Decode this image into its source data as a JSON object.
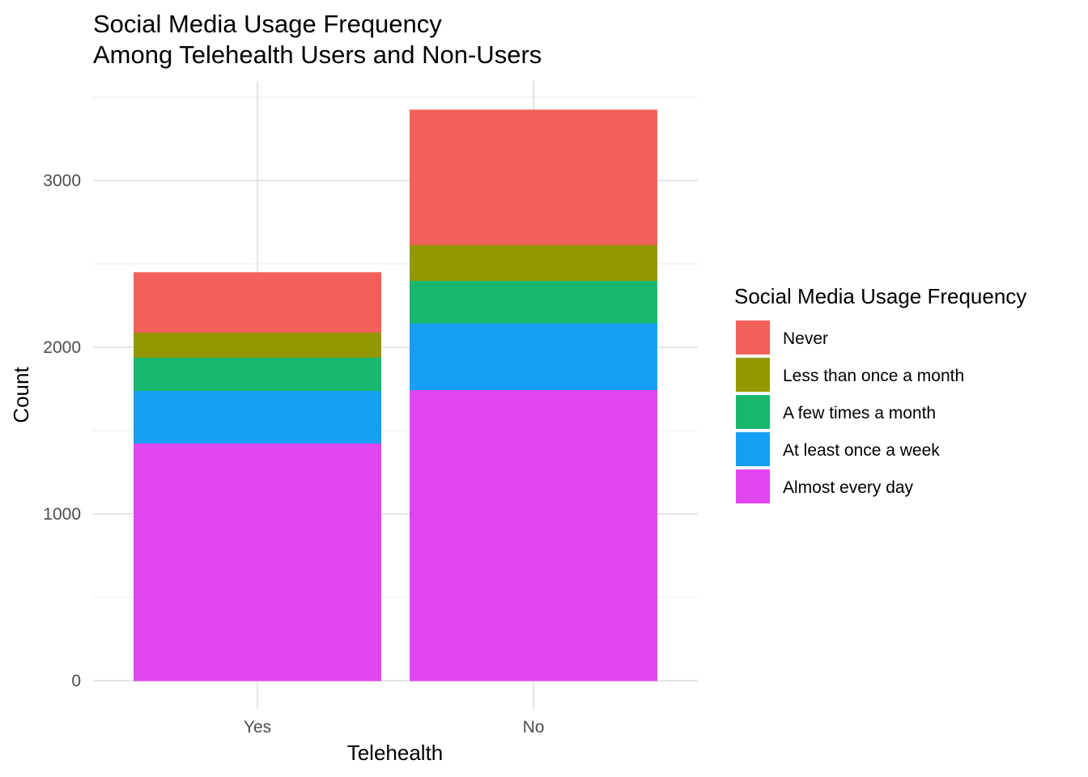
{
  "chart_data": {
    "type": "bar",
    "stacked": true,
    "title": "Social Media Usage Frequency",
    "subtitle": "Among Telehealth Users and Non-Users",
    "xlabel": "Telehealth",
    "ylabel": "Count",
    "categories": [
      "Yes",
      "No"
    ],
    "ylim": [
      0,
      3550
    ],
    "yticks": [
      0,
      1000,
      2000,
      3000
    ],
    "grid": true,
    "legend": {
      "title": "Social Media Usage Frequency",
      "position": "right"
    },
    "series": [
      {
        "name": "Almost every day",
        "color": "#E046F0",
        "values": [
          1425,
          1745
        ]
      },
      {
        "name": "At least once a week",
        "color": "#169FF2",
        "values": [
          315,
          400
        ]
      },
      {
        "name": "A few times a month",
        "color": "#19B76E",
        "values": [
          200,
          255
        ]
      },
      {
        "name": "Less than once a month",
        "color": "#949800",
        "values": [
          150,
          215
        ]
      },
      {
        "name": "Never",
        "color": "#F4605A",
        "values": [
          360,
          810
        ]
      }
    ]
  }
}
